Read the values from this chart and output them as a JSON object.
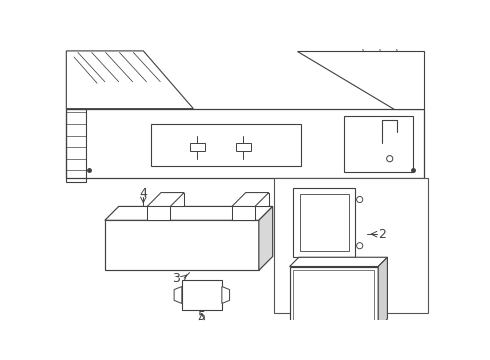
{
  "bg_color": "#ffffff",
  "lc": "#404040",
  "lw": 0.75,
  "fig_w": 4.9,
  "fig_h": 3.6,
  "dpi": 100
}
